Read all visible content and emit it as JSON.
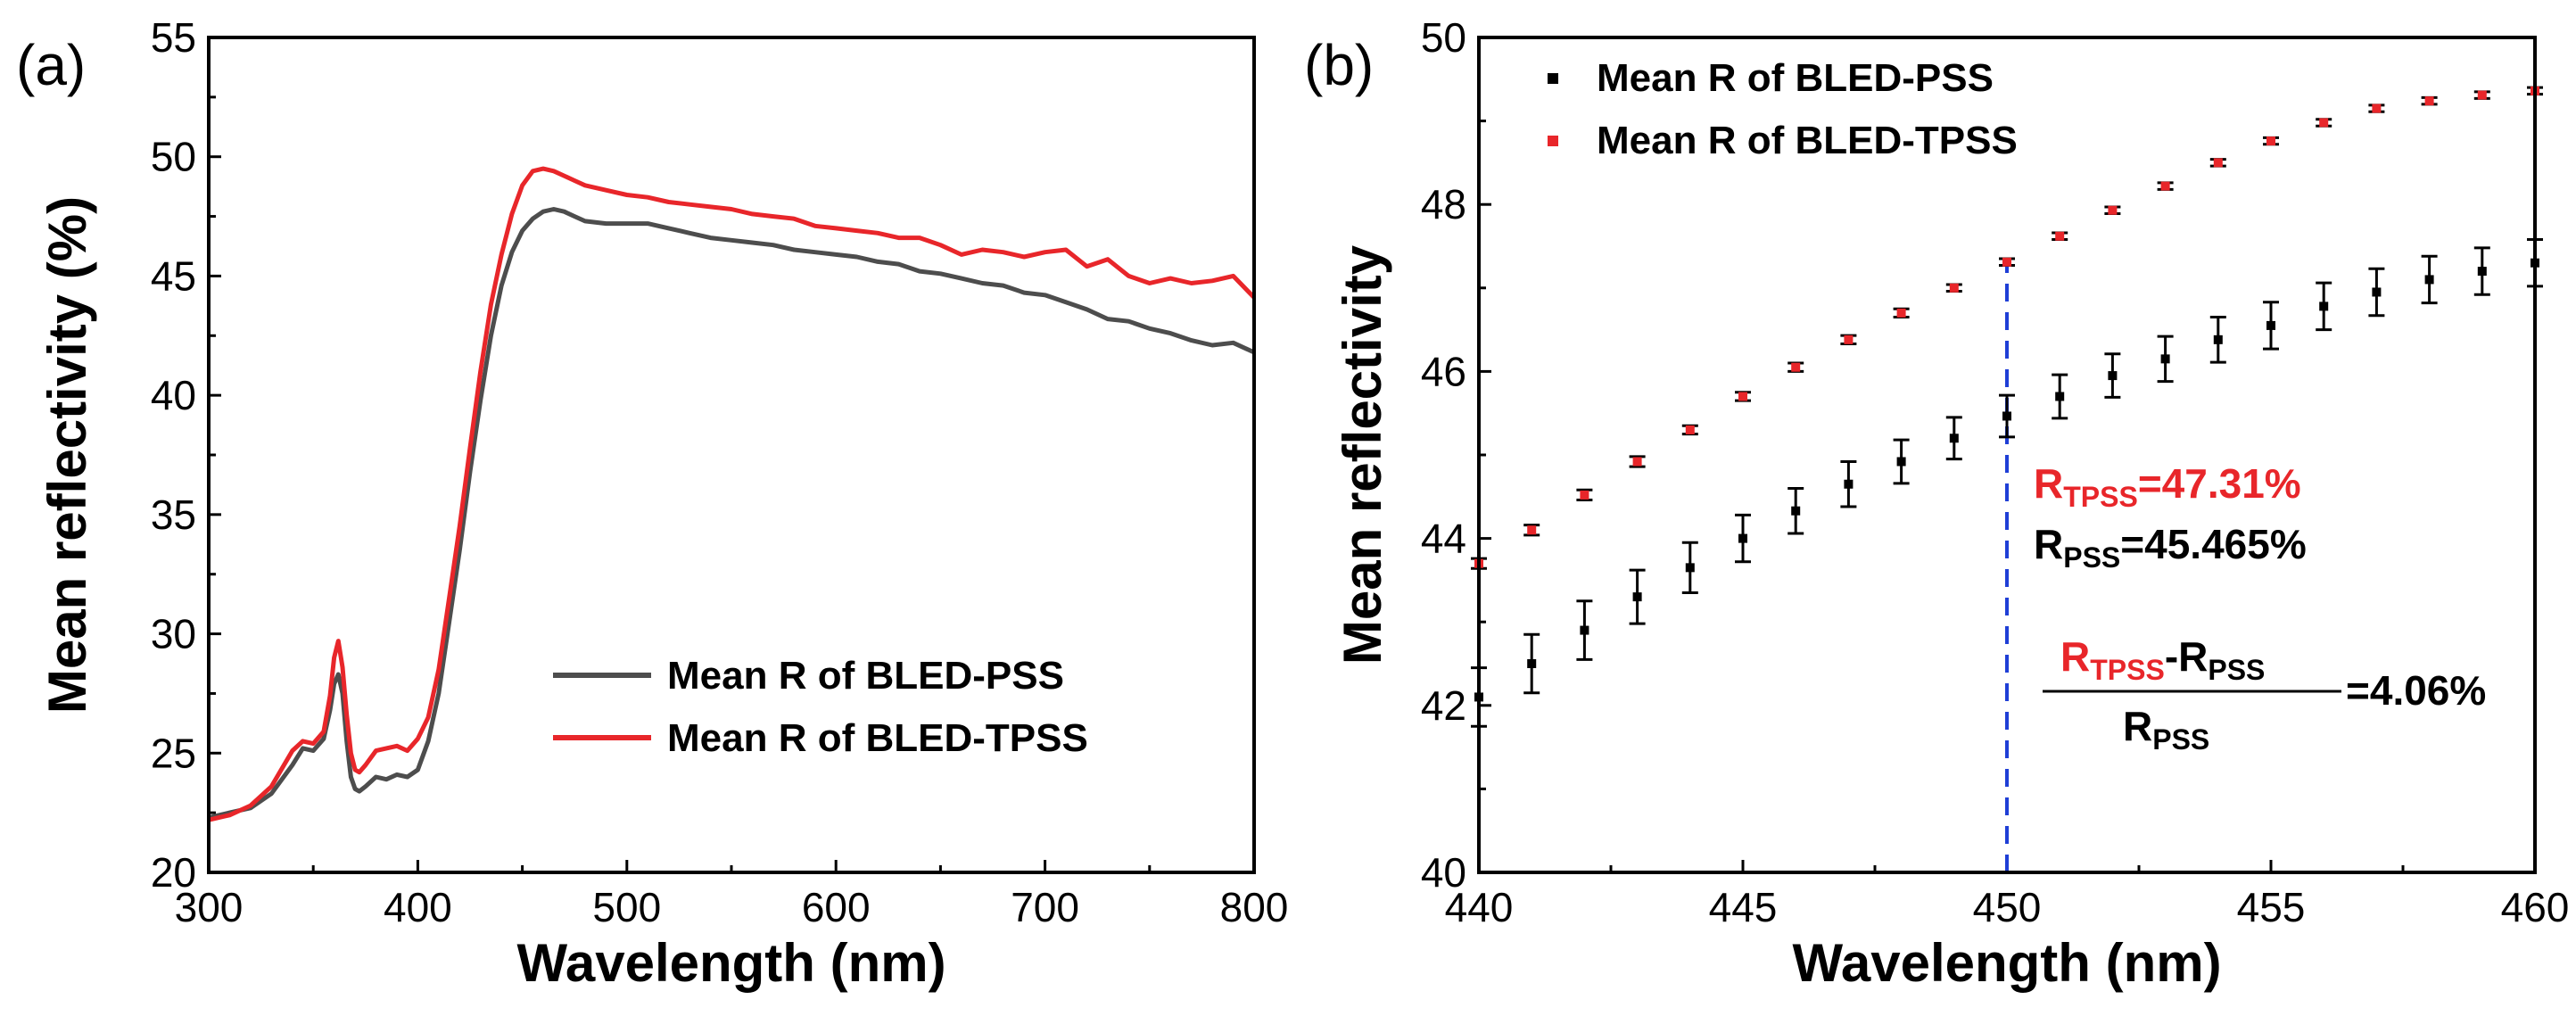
{
  "chart_data": [
    {
      "panel_label": "(a)",
      "type": "line",
      "xlabel": "Wavelength (nm)",
      "ylabel": "Mean reflectivity (%)",
      "xlim": [
        300,
        800
      ],
      "ylim": [
        20,
        55
      ],
      "xticks": [
        "300",
        "400",
        "500",
        "600",
        "700",
        "800"
      ],
      "yticks": [
        "20",
        "25",
        "30",
        "35",
        "40",
        "45",
        "50",
        "55"
      ],
      "legend_position": "center-right",
      "series": [
        {
          "name": "Mean R of BLED-PSS",
          "color": "#4d4d4d",
          "x": [
            300,
            310,
            320,
            330,
            340,
            345,
            350,
            355,
            358,
            360,
            362,
            364,
            366,
            368,
            370,
            372,
            375,
            380,
            385,
            390,
            395,
            400,
            405,
            410,
            415,
            420,
            425,
            430,
            435,
            440,
            445,
            450,
            455,
            460,
            465,
            470,
            475,
            480,
            490,
            500,
            510,
            520,
            530,
            540,
            550,
            560,
            570,
            580,
            590,
            600,
            610,
            620,
            630,
            640,
            650,
            660,
            670,
            680,
            690,
            700,
            710,
            720,
            730,
            740,
            750,
            760,
            770,
            780,
            790,
            800
          ],
          "values": [
            22.3,
            22.5,
            22.7,
            23.3,
            24.5,
            25.2,
            25.1,
            25.6,
            26.8,
            27.9,
            28.3,
            27.5,
            25.5,
            24.0,
            23.5,
            23.4,
            23.6,
            24.0,
            23.9,
            24.1,
            24.0,
            24.3,
            25.5,
            27.5,
            30.5,
            33.5,
            36.8,
            39.8,
            42.5,
            44.6,
            46.0,
            46.9,
            47.4,
            47.7,
            47.8,
            47.7,
            47.5,
            47.3,
            47.2,
            47.2,
            47.2,
            47.0,
            46.8,
            46.6,
            46.5,
            46.4,
            46.3,
            46.1,
            46.0,
            45.9,
            45.8,
            45.6,
            45.5,
            45.2,
            45.1,
            44.9,
            44.7,
            44.6,
            44.3,
            44.2,
            43.9,
            43.6,
            43.2,
            43.1,
            42.8,
            42.6,
            42.3,
            42.1,
            42.2,
            41.8
          ]
        },
        {
          "name": "Mean R of BLED-TPSS",
          "color": "#e8262a",
          "x": [
            300,
            310,
            320,
            330,
            340,
            345,
            350,
            355,
            358,
            360,
            362,
            364,
            366,
            368,
            370,
            372,
            375,
            380,
            385,
            390,
            395,
            400,
            405,
            410,
            415,
            420,
            425,
            430,
            435,
            440,
            445,
            450,
            455,
            460,
            465,
            470,
            475,
            480,
            490,
            500,
            510,
            520,
            530,
            540,
            550,
            560,
            570,
            580,
            590,
            600,
            610,
            620,
            630,
            640,
            650,
            660,
            670,
            680,
            690,
            700,
            710,
            720,
            730,
            740,
            750,
            760,
            770,
            780,
            790,
            800
          ],
          "values": [
            22.2,
            22.4,
            22.8,
            23.6,
            25.1,
            25.5,
            25.4,
            25.9,
            27.4,
            29.0,
            29.7,
            28.6,
            26.6,
            25.0,
            24.3,
            24.2,
            24.5,
            25.1,
            25.2,
            25.3,
            25.1,
            25.6,
            26.5,
            28.5,
            31.5,
            34.5,
            37.8,
            41.0,
            43.8,
            45.9,
            47.6,
            48.8,
            49.4,
            49.5,
            49.4,
            49.2,
            49.0,
            48.8,
            48.6,
            48.4,
            48.3,
            48.1,
            48.0,
            47.9,
            47.8,
            47.6,
            47.5,
            47.4,
            47.1,
            47.0,
            46.9,
            46.8,
            46.6,
            46.6,
            46.3,
            45.9,
            46.1,
            46.0,
            45.8,
            46.0,
            46.1,
            45.4,
            45.7,
            45.0,
            44.7,
            44.9,
            44.7,
            44.8,
            45.0,
            44.1
          ]
        }
      ]
    },
    {
      "panel_label": "(b)",
      "type": "scatter",
      "xlabel": "Wavelength (nm)",
      "ylabel": "Mean reflectivity",
      "xlim": [
        440,
        460
      ],
      "ylim": [
        40,
        50
      ],
      "xticks": [
        "440",
        "445",
        "450",
        "455",
        "460"
      ],
      "yticks": [
        "40",
        "42",
        "44",
        "46",
        "48",
        "50"
      ],
      "legend_position": "top-left",
      "series": [
        {
          "name": "Mean R of BLED-PSS",
          "color": "#000000",
          "x": [
            440,
            441,
            442,
            443,
            444,
            445,
            446,
            447,
            448,
            449,
            450,
            451,
            452,
            453,
            454,
            455,
            456,
            457,
            458,
            459,
            460
          ],
          "values": [
            42.1,
            42.5,
            42.9,
            43.3,
            43.65,
            44.0,
            44.33,
            44.65,
            44.92,
            45.2,
            45.465,
            45.7,
            45.95,
            46.15,
            46.38,
            46.55,
            46.78,
            46.95,
            47.1,
            47.2,
            47.3
          ],
          "errors": [
            0.35,
            0.35,
            0.35,
            0.32,
            0.3,
            0.28,
            0.27,
            0.27,
            0.26,
            0.25,
            0.25,
            0.26,
            0.26,
            0.27,
            0.27,
            0.28,
            0.28,
            0.28,
            0.28,
            0.28,
            0.28
          ]
        },
        {
          "name": "Mean R of BLED-TPSS",
          "color": "#e8262a",
          "x": [
            440,
            441,
            442,
            443,
            444,
            445,
            446,
            447,
            448,
            449,
            450,
            451,
            452,
            453,
            454,
            455,
            456,
            457,
            458,
            459,
            460
          ],
          "values": [
            43.7,
            44.1,
            44.52,
            44.92,
            45.3,
            45.7,
            46.05,
            46.38,
            46.7,
            47.0,
            47.31,
            47.62,
            47.93,
            48.22,
            48.5,
            48.76,
            48.98,
            49.15,
            49.24,
            49.31,
            49.36
          ],
          "errors": [
            0.06,
            0.06,
            0.06,
            0.06,
            0.05,
            0.05,
            0.05,
            0.05,
            0.05,
            0.04,
            0.04,
            0.04,
            0.04,
            0.04,
            0.04,
            0.04,
            0.04,
            0.04,
            0.04,
            0.04,
            0.04
          ]
        }
      ],
      "marker_line_x": 450,
      "annotations": {
        "r_tpss_main": "R",
        "r_tpss_sub": "TPSS",
        "r_tpss_value": "=47.31%",
        "r_pss_main": "R",
        "r_pss_sub": "PSS",
        "r_pss_value": "=45.465%",
        "frac_num_r1": "R",
        "frac_num_sub1": "TPSS",
        "frac_num_dash": "-R",
        "frac_num_sub2": "PSS",
        "frac_den_r": "R",
        "frac_den_sub": "PSS",
        "frac_result": "=4.06%"
      }
    }
  ]
}
